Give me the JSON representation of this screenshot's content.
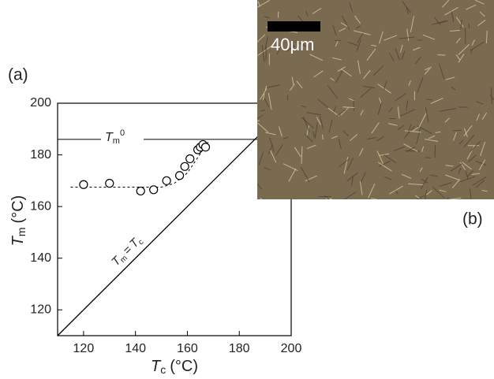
{
  "chart_data": {
    "type": "scatter",
    "panel_a": "(a)",
    "panel_b": "(b)",
    "scale_bar": "40μm",
    "xlabel": {
      "symbol": "T",
      "subscript": "c",
      "unit": "(°C)"
    },
    "ylabel": {
      "symbol": "T",
      "subscript": "m",
      "unit": "(°C)"
    },
    "equilibrium_label": {
      "symbol": "T",
      "subscript": "m",
      "superscript": "0"
    },
    "identity_label": {
      "left": "T",
      "left_sub": "m",
      "eq": "=",
      "right": "T",
      "right_sub": "c"
    },
    "x": [
      120,
      130,
      142,
      147,
      152,
      157,
      159,
      161,
      164,
      165,
      166,
      167
    ],
    "values": [
      168.5,
      169,
      166,
      166.5,
      170,
      172,
      175.5,
      178.5,
      182,
      183,
      184,
      183
    ],
    "equilibrium_value": 186,
    "identity_range": [
      110,
      190
    ],
    "fit": {
      "x": [
        115,
        150,
        155,
        160,
        164,
        168
      ],
      "y": [
        167.5,
        167.5,
        169,
        173,
        179,
        185
      ]
    },
    "xlim": [
      110,
      200
    ],
    "ylim": [
      110,
      200
    ],
    "xticks": [
      120,
      140,
      160,
      180,
      200
    ],
    "yticks": [
      120,
      140,
      160,
      180,
      200
    ]
  }
}
